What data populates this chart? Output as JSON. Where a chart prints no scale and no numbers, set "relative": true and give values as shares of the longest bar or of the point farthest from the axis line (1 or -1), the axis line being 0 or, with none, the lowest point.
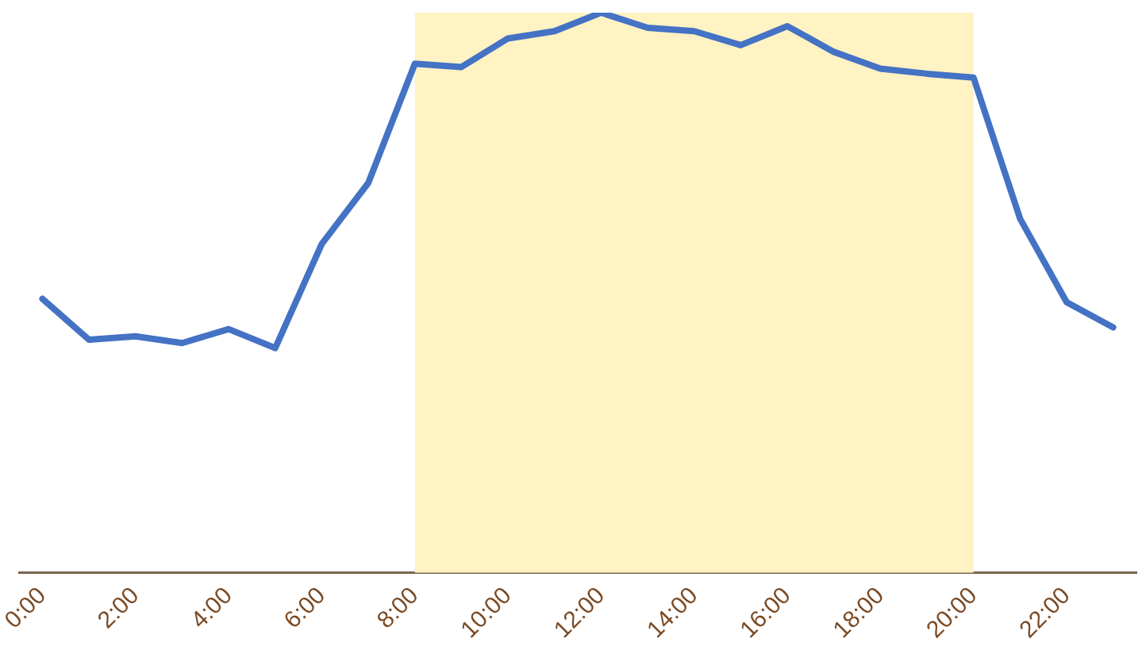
{
  "chart_data": {
    "type": "line",
    "relative": true,
    "categories": [
      "0:00",
      null,
      "2:00",
      null,
      "4:00",
      null,
      "6:00",
      null,
      "8:00",
      null,
      "10:00",
      null,
      "12:00",
      null,
      "14:00",
      null,
      "16:00",
      null,
      "18:00",
      null,
      "20:00",
      null,
      "22:00",
      null
    ],
    "series": [
      {
        "color": "#4472c4",
        "values": [
          0.489,
          0.416,
          0.422,
          0.41,
          0.435,
          0.401,
          0.587,
          0.696,
          0.909,
          0.903,
          0.954,
          0.967,
          1,
          0.973,
          0.967,
          0.942,
          0.976,
          0.93,
          0.9,
          0.891,
          0.884,
          0.632,
          0.483,
          0.438
        ]
      }
    ],
    "bands": [
      {
        "axis": "x",
        "from": "8:00",
        "to": "20:00",
        "color": "#fff2c3"
      }
    ],
    "grid": false,
    "legend": false,
    "marker": "none",
    "line_style": "solid"
  }
}
